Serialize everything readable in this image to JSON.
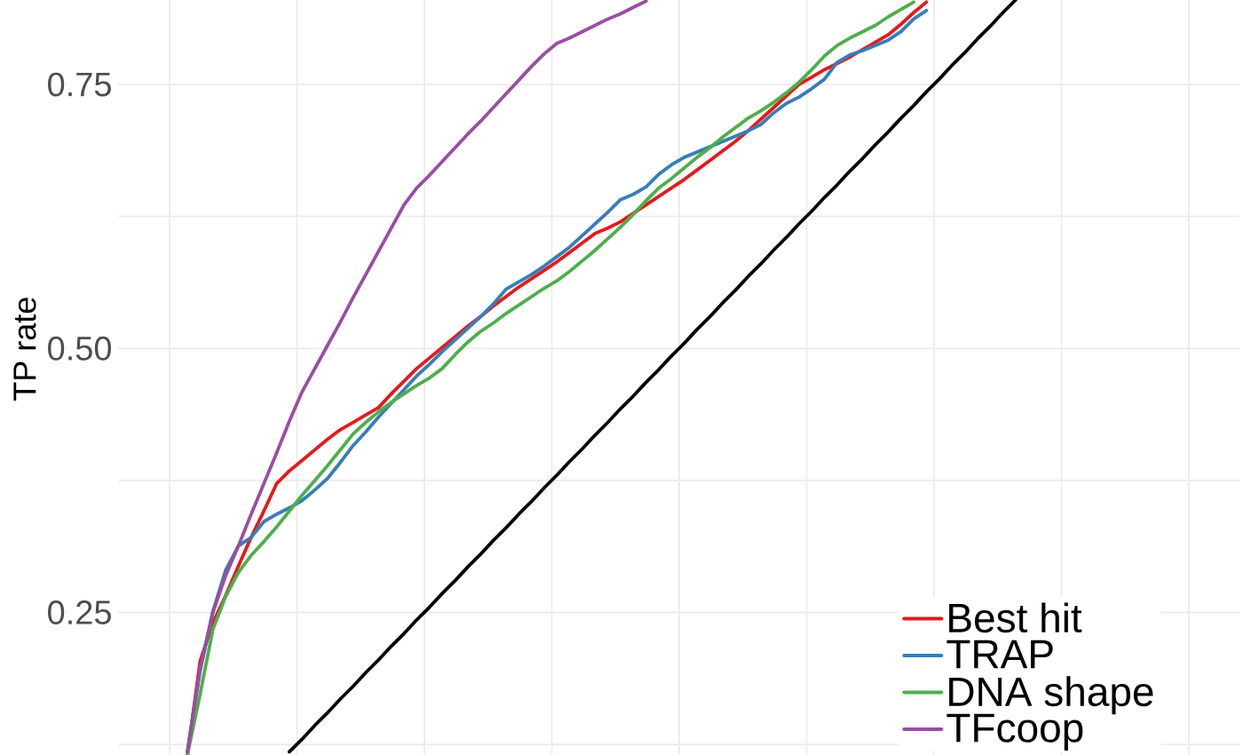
{
  "chart_data": {
    "type": "line",
    "ylabel": "TP rate",
    "categories": [
      null,
      null,
      null,
      null,
      null,
      null,
      null,
      null,
      null,
      null,
      null,
      null,
      null,
      null,
      null,
      null,
      null,
      null,
      null,
      null,
      null,
      null,
      null,
      null,
      null,
      null,
      null,
      null,
      null,
      null,
      null,
      null,
      null,
      null,
      null,
      null,
      null,
      null,
      null,
      null,
      null,
      null,
      null,
      null,
      null,
      null,
      null,
      null,
      null,
      null,
      null,
      null,
      null,
      null,
      null,
      null,
      null,
      null,
      null,
      null,
      null,
      null,
      null,
      null,
      null,
      null
    ],
    "ylim": [
      0.115,
      0.83
    ],
    "yticks": [
      {
        "value": 0.125,
        "label": null
      },
      {
        "value": 0.25,
        "label": "0.25"
      },
      {
        "value": 0.375,
        "label": null
      },
      {
        "value": 0.5,
        "label": "0.50"
      },
      {
        "value": 0.625,
        "label": null
      },
      {
        "value": 0.75,
        "label": "0.75"
      }
    ],
    "tick_labels": "y",
    "grid": true,
    "legend": "bottom right",
    "series": [
      {
        "color": "#000000",
        "values": [
          null,
          null,
          null,
          null,
          null,
          null,
          null,
          null,
          0.118,
          0.13,
          0.143,
          0.155,
          0.168,
          0.18,
          0.193,
          0.205,
          0.218,
          0.23,
          0.243,
          0.255,
          0.268,
          0.28,
          0.293,
          0.305,
          0.318,
          0.33,
          0.343,
          0.355,
          0.368,
          0.38,
          0.393,
          0.405,
          0.418,
          0.43,
          0.443,
          0.455,
          0.468,
          0.48,
          0.493,
          0.505,
          0.518,
          0.53,
          0.543,
          0.555,
          0.568,
          0.58,
          0.593,
          0.605,
          0.618,
          0.63,
          0.643,
          0.655,
          0.668,
          0.68,
          0.693,
          0.705,
          0.718,
          0.73,
          0.743,
          0.755,
          0.768,
          0.78,
          0.793,
          0.805,
          0.818,
          0.83
        ]
      },
      {
        "name": "Best hit",
        "color": "#e41a1c",
        "values": [
          0.115,
          0.204,
          0.24,
          0.266,
          0.294,
          0.321,
          0.346,
          0.372,
          0.384,
          0.394,
          0.404,
          0.414,
          0.423,
          0.43,
          0.437,
          0.444,
          0.457,
          0.469,
          0.481,
          0.491,
          0.501,
          0.511,
          0.521,
          0.53,
          0.54,
          0.549,
          0.558,
          0.566,
          0.574,
          0.582,
          0.591,
          0.6,
          0.609,
          0.614,
          0.62,
          0.628,
          0.636,
          0.644,
          0.652,
          0.66,
          0.669,
          0.678,
          0.687,
          0.696,
          0.706,
          0.717,
          0.728,
          0.739,
          0.75,
          0.757,
          0.764,
          0.77,
          0.776,
          0.783,
          0.79,
          0.797,
          0.807,
          0.818,
          0.828,
          null,
          null,
          null,
          null,
          null,
          null,
          null
        ]
      },
      {
        "name": "TRAP",
        "color": "#377eb8",
        "values": [
          0.118,
          0.195,
          0.251,
          0.29,
          0.313,
          0.321,
          0.336,
          0.343,
          0.349,
          0.356,
          0.366,
          0.377,
          0.392,
          0.408,
          0.421,
          0.435,
          0.448,
          0.461,
          0.474,
          0.485,
          0.497,
          0.508,
          0.519,
          0.53,
          0.542,
          0.556,
          0.563,
          0.57,
          0.578,
          0.587,
          0.596,
          0.607,
          0.618,
          0.629,
          0.641,
          0.646,
          0.653,
          0.665,
          0.674,
          0.681,
          0.686,
          0.691,
          0.696,
          0.701,
          0.706,
          0.712,
          0.723,
          0.732,
          0.738,
          0.746,
          0.755,
          0.771,
          0.778,
          0.782,
          0.787,
          0.792,
          0.8,
          0.812,
          0.82,
          null,
          null,
          null,
          null,
          null,
          null,
          null
        ]
      },
      {
        "name": "DNA shape",
        "color": "#4daf4a",
        "values": [
          0.115,
          0.173,
          0.234,
          0.265,
          0.288,
          0.304,
          0.317,
          0.331,
          0.346,
          0.361,
          0.375,
          0.389,
          0.404,
          0.419,
          0.43,
          0.44,
          0.449,
          0.457,
          0.465,
          0.472,
          0.481,
          0.494,
          0.506,
          0.516,
          0.524,
          0.533,
          0.541,
          0.549,
          0.557,
          0.564,
          0.573,
          0.583,
          0.593,
          0.604,
          0.615,
          0.627,
          0.64,
          0.652,
          0.661,
          0.671,
          0.681,
          0.69,
          0.7,
          0.709,
          0.718,
          0.725,
          0.733,
          0.742,
          0.752,
          0.764,
          0.777,
          0.787,
          0.794,
          0.8,
          0.806,
          0.814,
          0.821,
          0.828,
          null,
          null,
          null,
          null,
          null,
          null,
          null,
          null
        ]
      },
      {
        "name": "TFcoop",
        "color": "#984ea3",
        "values": [
          0.118,
          0.197,
          0.25,
          0.285,
          0.313,
          0.343,
          0.372,
          0.401,
          0.431,
          0.459,
          0.481,
          0.503,
          0.525,
          0.548,
          0.57,
          0.592,
          0.614,
          0.636,
          0.652,
          0.664,
          0.677,
          0.69,
          0.703,
          0.715,
          0.728,
          0.741,
          0.754,
          0.767,
          0.779,
          0.789,
          0.794,
          0.8,
          0.806,
          0.812,
          0.817,
          0.823,
          0.829,
          null,
          null,
          null,
          null,
          null,
          null,
          null,
          null,
          null,
          null,
          null,
          null,
          null,
          null,
          null,
          null,
          null,
          null,
          null,
          null,
          null,
          null,
          null,
          null,
          null,
          null,
          null,
          null,
          null
        ]
      }
    ]
  }
}
